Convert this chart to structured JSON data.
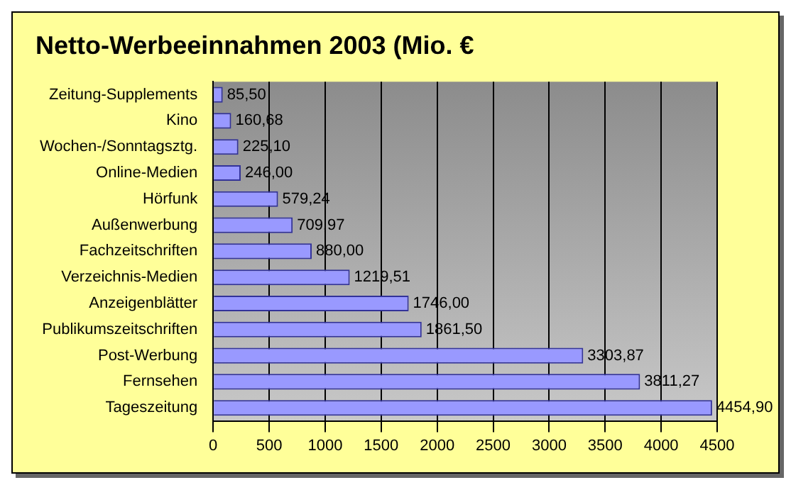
{
  "chart_data": {
    "type": "bar",
    "orientation": "horizontal",
    "title": "Netto-Werbeeinnahmen 2003 (Mio. €",
    "categories": [
      "Zeitung-Supplements",
      "Kino",
      "Wochen-/Sonntagsztg.",
      "Online-Medien",
      "Hörfunk",
      "Außenwerbung",
      "Fachzeitschriften",
      "Verzeichnis-Medien",
      "Anzeigenblätter",
      "Publikumszeitschriften",
      "Post-Werbung",
      "Fernsehen",
      "Tageszeitung"
    ],
    "values": [
      85.5,
      160.68,
      225.1,
      246.0,
      579.24,
      709.97,
      880.0,
      1219.51,
      1746.0,
      1861.5,
      3303.87,
      3811.27,
      4454.9
    ],
    "value_labels": [
      "85,50",
      "160,68",
      "225,10",
      "246,00",
      "579,24",
      "709,97",
      "880,00",
      "1219,51",
      "1746,00",
      "1861,50",
      "3303,87",
      "3811,27",
      "4454,90"
    ],
    "color": "#9999ff",
    "xlim": [
      0,
      4500
    ],
    "xticks": [
      0,
      500,
      1000,
      1500,
      2000,
      2500,
      3000,
      3500,
      4000,
      4500
    ],
    "grid": "x",
    "legend": false
  }
}
